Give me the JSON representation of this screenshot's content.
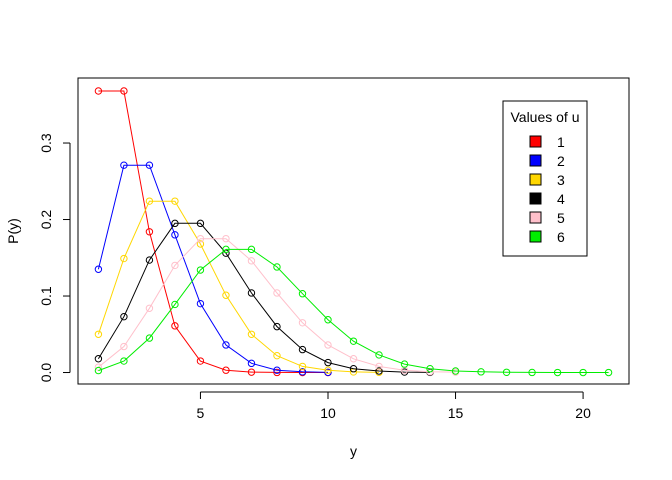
{
  "chart_data": {
    "type": "line",
    "title": "",
    "xlabel": "y",
    "ylabel": "P(y)",
    "xlim": [
      0.2,
      21.8
    ],
    "ylim": [
      -0.015,
      0.385
    ],
    "xticks": [
      5,
      10,
      15,
      20
    ],
    "yticks": [
      0.0,
      0.1,
      0.2,
      0.3
    ],
    "ytick_labels": [
      "0.0",
      "0.1",
      "0.2",
      "0.3"
    ],
    "legend": {
      "title": "Values of u",
      "position": "top-right"
    },
    "grid": false,
    "series": [
      {
        "name": "1",
        "color": "#ff0000",
        "x": [
          1,
          2,
          3,
          4,
          5,
          6,
          7,
          8,
          9,
          10
        ],
        "values": [
          0.368,
          0.368,
          0.184,
          0.061,
          0.015,
          0.003,
          0.0005,
          0.0001,
          0.0,
          0.0
        ]
      },
      {
        "name": "2",
        "color": "#0000ff",
        "x": [
          1,
          2,
          3,
          4,
          5,
          6,
          7,
          8,
          9,
          10
        ],
        "values": [
          0.135,
          0.271,
          0.271,
          0.18,
          0.09,
          0.036,
          0.012,
          0.003,
          0.0009,
          0.0002
        ]
      },
      {
        "name": "3",
        "color": "#ffd700",
        "x": [
          1,
          2,
          3,
          4,
          5,
          6,
          7,
          8,
          9,
          10,
          11,
          12
        ],
        "values": [
          0.05,
          0.149,
          0.224,
          0.224,
          0.168,
          0.101,
          0.05,
          0.022,
          0.008,
          0.003,
          0.0008,
          0.0002
        ]
      },
      {
        "name": "4",
        "color": "#000000",
        "x": [
          1,
          2,
          3,
          4,
          5,
          6,
          7,
          8,
          9,
          10,
          11,
          12,
          13,
          14
        ],
        "values": [
          0.018,
          0.073,
          0.147,
          0.195,
          0.195,
          0.156,
          0.104,
          0.06,
          0.03,
          0.013,
          0.005,
          0.002,
          0.0006,
          0.0002
        ]
      },
      {
        "name": "5",
        "color": "#ffc0cb",
        "x": [
          1,
          2,
          3,
          4,
          5,
          6,
          7,
          8,
          9,
          10,
          11,
          12,
          13,
          14,
          15
        ],
        "values": [
          0.007,
          0.034,
          0.084,
          0.14,
          0.175,
          0.175,
          0.146,
          0.104,
          0.065,
          0.036,
          0.018,
          0.008,
          0.003,
          0.001,
          0.0005
        ]
      },
      {
        "name": "6",
        "color": "#00ee00",
        "x": [
          1,
          2,
          3,
          4,
          5,
          6,
          7,
          8,
          9,
          10,
          11,
          12,
          13,
          14,
          15,
          16,
          17,
          18,
          19,
          20,
          21
        ],
        "values": [
          0.0025,
          0.015,
          0.045,
          0.089,
          0.134,
          0.161,
          0.161,
          0.138,
          0.103,
          0.069,
          0.041,
          0.023,
          0.011,
          0.005,
          0.002,
          0.0009,
          0.0003,
          0.0001,
          0.0,
          0.0,
          0.0
        ]
      }
    ]
  }
}
